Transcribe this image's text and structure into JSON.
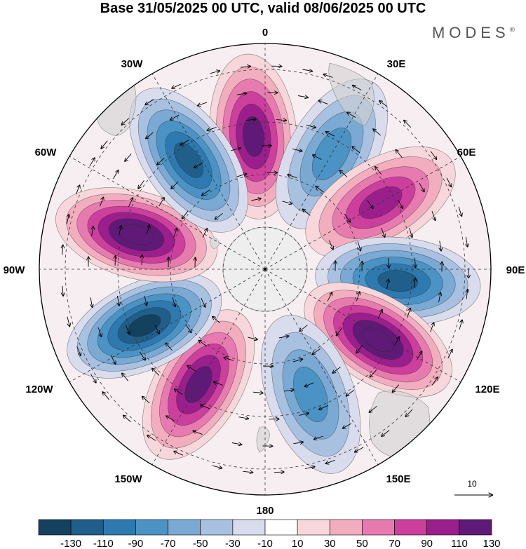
{
  "title": "Base 31/05/2025 00 UTC, valid 08/06/2025 00 UTC",
  "brand": "MODES",
  "brand_mark": "®",
  "longitude_labels": [
    "0",
    "30E",
    "60E",
    "90E",
    "120E",
    "150E",
    "180",
    "150W",
    "120W",
    "90W",
    "60W",
    "30W"
  ],
  "vector_reference": "10",
  "colorbar": {
    "ticks": [
      "-130",
      "-110",
      "-90",
      "-70",
      "-50",
      "-30",
      "-10",
      "10",
      "30",
      "50",
      "70",
      "90",
      "110",
      "130"
    ],
    "colors": [
      "#13415e",
      "#1f5f8a",
      "#2e7ab0",
      "#4a93c4",
      "#7aa9d3",
      "#a9c1e0",
      "#d8dced",
      "#ffffff",
      "#f8d7dc",
      "#f2aebf",
      "#e77bb0",
      "#cc3f9c",
      "#9a1f8c",
      "#5f1a78"
    ]
  },
  "anomaly_centers": [
    {
      "lon": 355,
      "value": 110
    },
    {
      "lon": 30,
      "value": -70
    },
    {
      "lon": 60,
      "value": 90
    },
    {
      "lon": 95,
      "value": -110
    },
    {
      "lon": 122,
      "value": 130
    },
    {
      "lon": 160,
      "value": -70
    },
    {
      "lon": 210,
      "value": 110
    },
    {
      "lon": 245,
      "value": -130
    },
    {
      "lon": 285,
      "value": 130
    },
    {
      "lon": 325,
      "value": -110
    }
  ]
}
